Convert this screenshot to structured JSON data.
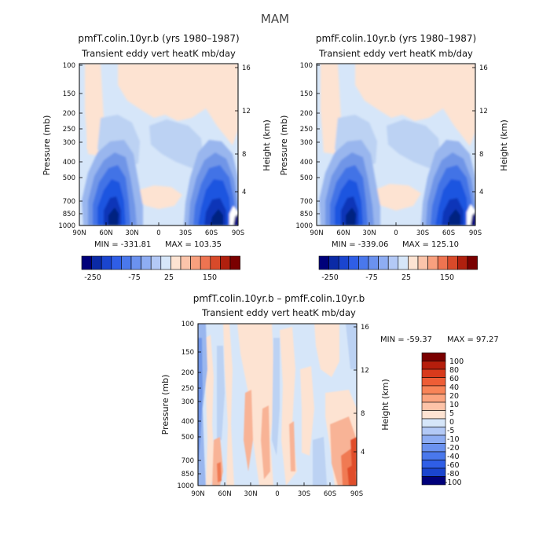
{
  "figure_title": "MAM",
  "colors": {
    "neg_strong": "#00007a",
    "neg_weak": "#d6e6f9",
    "pos_weak": "#fde3d2",
    "pos_strong": "#7a0000"
  },
  "chart_data": [
    {
      "type": "heatmap",
      "title": "pmfT.colin.10yr.b (yrs 1980–1987)",
      "subtitle": "Transient eddy vert heatK mb/day",
      "xlabel": "",
      "ylabel": "Pressure (mb)",
      "y2label": "Height (km)",
      "x_ticks": [
        "90N",
        "60N",
        "30N",
        "0",
        "30S",
        "60S",
        "90S"
      ],
      "y_ticks": [
        "100",
        "150",
        "200",
        "250",
        "300",
        "400",
        "500",
        "700",
        "850",
        "1000"
      ],
      "y2_ticks": [
        "16",
        "12",
        "8",
        "4"
      ],
      "min_text": "MIN = -331.81",
      "max_text": "MAX = 103.35",
      "colorbar_labels": [
        "-250",
        "-75",
        "25",
        "150"
      ]
    },
    {
      "type": "heatmap",
      "title": "pmfF.colin.10yr.b (yrs 1980–1987)",
      "subtitle": "Transient eddy vert heatK mb/day",
      "xlabel": "",
      "ylabel": "Pressure (mb)",
      "y2label": "Height (km)",
      "x_ticks": [
        "90N",
        "60N",
        "30N",
        "0",
        "30S",
        "60S",
        "90S"
      ],
      "y_ticks": [
        "100",
        "150",
        "200",
        "250",
        "300",
        "400",
        "500",
        "700",
        "850",
        "1000"
      ],
      "y2_ticks": [
        "16",
        "12",
        "8",
        "4"
      ],
      "min_text": "MIN = -339.06",
      "max_text": "MAX = 125.10",
      "colorbar_labels": [
        "-250",
        "-75",
        "25",
        "150"
      ]
    },
    {
      "type": "heatmap",
      "title": "pmfT.colin.10yr.b – pmfF.colin.10yr.b",
      "subtitle": "Transient eddy vert heatK mb/day",
      "xlabel": "",
      "ylabel": "Pressure (mb)",
      "y2label": "Height (km)",
      "x_ticks": [
        "90N",
        "60N",
        "30N",
        "0",
        "30S",
        "60S",
        "90S"
      ],
      "y_ticks": [
        "100",
        "150",
        "200",
        "250",
        "300",
        "400",
        "500",
        "700",
        "850",
        "1000"
      ],
      "y2_ticks": [
        "16",
        "12",
        "8",
        "4"
      ],
      "min_text": "MIN = -59.37",
      "max_text": "MAX =  97.27",
      "colorbar_labels": [
        "100",
        "80",
        "60",
        "40",
        "20",
        "10",
        "5",
        "0",
        "-5",
        "-10",
        "-20",
        "-40",
        "-60",
        "-80",
        "-100"
      ]
    }
  ]
}
